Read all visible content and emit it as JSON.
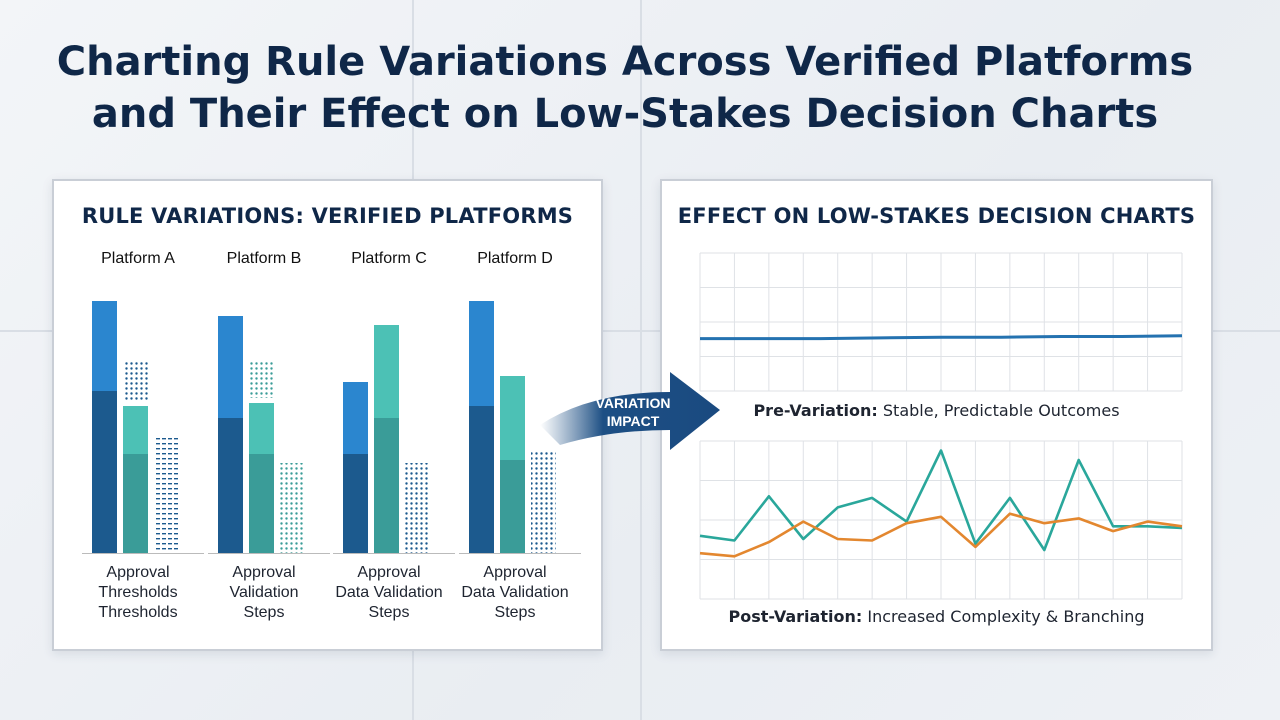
{
  "title_lines": [
    "Charting Rule Variations Across Verified Platforms",
    "and Their Effect on Low-Stakes Decision Charts"
  ],
  "arrow_label": [
    "VARIATION",
    "IMPACT"
  ],
  "colors": {
    "dark_blue": "#1c5a8e",
    "blue": "#2b86cf",
    "teal_dark": "#3a9c98",
    "teal": "#4cc1b5",
    "line_blue": "#2472b0",
    "line_teal": "#2aa79b",
    "line_orange": "#e3872f",
    "navy": "#0f2748"
  },
  "chart_data": [
    {
      "type": "bar",
      "title": "RULE VARIATIONS: VERIFIED PLATFORMS",
      "groups": [
        {
          "name": "Platform A",
          "category_lines": [
            "Approval",
            "Thresholds",
            "Thresholds"
          ],
          "bars": [
            {
              "base": 54,
              "top": 30,
              "style": "blue"
            },
            {
              "base": 33,
              "top": 16,
              "style": "teal"
            },
            {
              "base": 0,
              "top": 0,
              "pattern": 39,
              "style": "blue"
            }
          ],
          "overlay_pattern_on_bar2": 13
        },
        {
          "name": "Platform B",
          "category_lines": [
            "Approval",
            "Validation",
            "Steps"
          ],
          "bars": [
            {
              "base": 45,
              "top": 34,
              "style": "blue"
            },
            {
              "base": 33,
              "top": 17,
              "style": "teal"
            },
            {
              "base": 0,
              "top": 0,
              "pattern": 30,
              "style": "teal"
            }
          ],
          "overlay_pattern_on_bar2": 12
        },
        {
          "name": "Platform C",
          "category_lines": [
            "Approval",
            "Data Validation",
            "Steps"
          ],
          "bars": [
            {
              "base": 33,
              "top": 24,
              "style": "blue"
            },
            {
              "base": 45,
              "top": 31,
              "style": "teal"
            },
            {
              "base": 0,
              "top": 0,
              "pattern": 30,
              "style": "blue"
            }
          ]
        },
        {
          "name": "Platform D",
          "category_lines": [
            "Approval",
            "Data Validation",
            "Steps"
          ],
          "bars": [
            {
              "base": 49,
              "top": 35,
              "style": "blue"
            },
            {
              "base": 31,
              "top": 28,
              "style": "teal"
            },
            {
              "base": 0,
              "top": 0,
              "pattern": 34,
              "style": "blue"
            }
          ]
        }
      ]
    },
    {
      "type": "line",
      "title": "EFFECT ON LOW-STAKES DECISION CHARTS",
      "panels": [
        {
          "caption_bold": "Pre-Variation:",
          "caption_rest": "Stable, Predictable Outcomes",
          "ylim": [
            0,
            100
          ],
          "series": [
            {
              "color": "line_blue",
              "values": [
                38,
                38,
                38,
                38.5,
                39,
                39,
                39.5,
                39.5,
                40
              ]
            }
          ]
        },
        {
          "caption_bold": "Post-Variation:",
          "caption_rest": "Increased Complexity & Branching",
          "ylim": [
            0,
            100
          ],
          "series": [
            {
              "color": "line_teal",
              "values": [
                40,
                37,
                65,
                38,
                58,
                64,
                49,
                94,
                35,
                64,
                31,
                88,
                46,
                46,
                45
              ]
            },
            {
              "color": "line_orange",
              "values": [
                29,
                27,
                36,
                49,
                38,
                37,
                48,
                52,
                33,
                54,
                48,
                51,
                43,
                49,
                46
              ]
            }
          ]
        }
      ]
    }
  ]
}
